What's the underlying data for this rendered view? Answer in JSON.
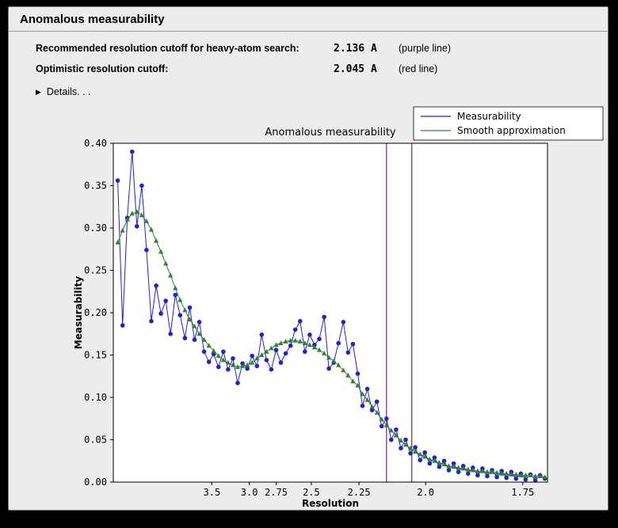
{
  "window": {
    "title": "Anomalous measurability"
  },
  "info": {
    "rows": [
      {
        "label": "Recommended resolution cutoff for heavy-atom search:",
        "value": "2.136 A",
        "note": "(purple line)"
      },
      {
        "label": "Optimistic resolution cutoff:",
        "value": "2.045 A",
        "note": "(red line)"
      }
    ],
    "details_label": "Details. . ."
  },
  "chart_data": {
    "type": "line",
    "title": "Anomalous measurability",
    "xlabel": "Resolution",
    "ylabel": "Measurability",
    "x_axis": {
      "scale": "inverse_d_squared",
      "range_s": [
        0.004,
        0.346
      ],
      "tick_labels": [
        "3.5",
        "3.0",
        "2.75",
        "2.5",
        "2.25",
        "2.0",
        "1.75"
      ]
    },
    "y_axis": {
      "range": [
        0.0,
        0.4
      ],
      "tick_step": 0.05
    },
    "legend": {
      "position": "top-right",
      "entries": [
        "Measurability",
        "Smooth approximation"
      ]
    },
    "s_start": 0.0075,
    "s_step": 0.00378,
    "series": [
      {
        "name": "Measurability",
        "color": "#2222cc",
        "marker": "circle",
        "values": [
          0.356,
          0.185,
          0.312,
          0.39,
          0.302,
          0.35,
          0.274,
          0.19,
          0.232,
          0.199,
          0.214,
          0.175,
          0.221,
          0.197,
          0.17,
          0.206,
          0.168,
          0.189,
          0.154,
          0.142,
          0.151,
          0.136,
          0.154,
          0.133,
          0.146,
          0.117,
          0.14,
          0.134,
          0.149,
          0.137,
          0.174,
          0.144,
          0.133,
          0.156,
          0.141,
          0.152,
          0.161,
          0.18,
          0.19,
          0.154,
          0.174,
          0.162,
          0.169,
          0.195,
          0.134,
          0.141,
          0.164,
          0.189,
          0.153,
          0.163,
          0.128,
          0.09,
          0.11,
          0.085,
          0.095,
          0.066,
          0.075,
          0.05,
          0.062,
          0.04,
          0.05,
          0.034,
          0.041,
          0.026,
          0.035,
          0.022,
          0.029,
          0.018,
          0.025,
          0.014,
          0.022,
          0.012,
          0.019,
          0.01,
          0.017,
          0.008,
          0.016,
          0.007,
          0.014,
          0.006,
          0.013,
          0.005,
          0.012,
          0.004,
          0.01,
          0.003,
          0.009,
          0.002,
          0.008,
          0.004
        ]
      },
      {
        "name": "Smooth approximation",
        "color": "#338033",
        "marker": "triangle",
        "values": [
          0.283,
          0.297,
          0.31,
          0.317,
          0.319,
          0.315,
          0.308,
          0.298,
          0.285,
          0.272,
          0.258,
          0.244,
          0.229,
          0.215,
          0.203,
          0.192,
          0.184,
          0.175,
          0.168,
          0.161,
          0.155,
          0.149,
          0.144,
          0.141,
          0.138,
          0.136,
          0.137,
          0.138,
          0.141,
          0.146,
          0.15,
          0.154,
          0.158,
          0.162,
          0.164,
          0.166,
          0.167,
          0.167,
          0.166,
          0.164,
          0.162,
          0.159,
          0.156,
          0.152,
          0.147,
          0.143,
          0.138,
          0.132,
          0.126,
          0.119,
          0.114,
          0.104,
          0.097,
          0.089,
          0.082,
          0.074,
          0.067,
          0.061,
          0.055,
          0.049,
          0.044,
          0.04,
          0.036,
          0.033,
          0.03,
          0.027,
          0.025,
          0.023,
          0.021,
          0.019,
          0.018,
          0.017,
          0.016,
          0.015,
          0.014,
          0.013,
          0.013,
          0.012,
          0.012,
          0.011,
          0.01,
          0.01,
          0.009,
          0.009,
          0.008,
          0.008,
          0.008,
          0.007,
          0.007,
          0.006
        ]
      }
    ],
    "vlines": [
      {
        "name": "purple-line",
        "resolution": 2.136,
        "color": "#b000b0"
      },
      {
        "name": "red-line",
        "resolution": 2.045,
        "color": "#9b1c1c"
      }
    ]
  }
}
